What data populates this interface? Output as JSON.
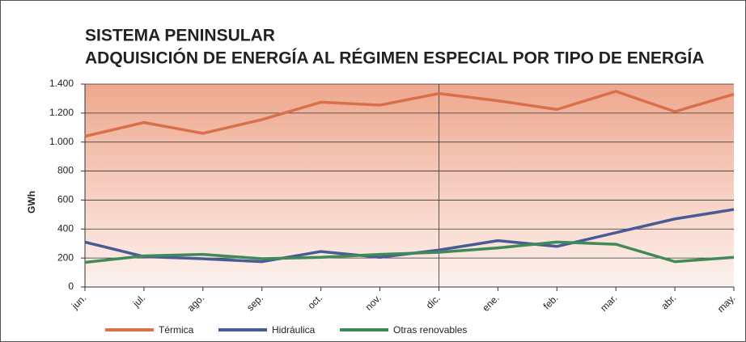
{
  "chart_data": {
    "type": "line",
    "title": [
      "SISTEMA PENINSULAR",
      "ADQUISICIÓN DE ENERGÍA AL RÉGIMEN ESPECIAL POR TIPO DE ENERGÍA"
    ],
    "y_label": "GWh",
    "categories": [
      "jun.",
      "jul.",
      "ago.",
      "sep.",
      "oct.",
      "nov.",
      "dic.",
      "ene.",
      "feb.",
      "mar.",
      "abr.",
      "may."
    ],
    "series": [
      {
        "name": "Térmica",
        "color": "#d9704a",
        "values": [
          1040,
          1135,
          1060,
          1155,
          1275,
          1255,
          1335,
          1285,
          1225,
          1350,
          1210,
          1330
        ]
      },
      {
        "name": "Hidráulica",
        "color": "#4a5a94",
        "values": [
          310,
          210,
          195,
          175,
          245,
          205,
          255,
          320,
          280,
          375,
          470,
          535
        ]
      },
      {
        "name": "Otras renovables",
        "color": "#3f8a57",
        "values": [
          170,
          215,
          225,
          195,
          205,
          225,
          240,
          270,
          310,
          295,
          175,
          205
        ]
      }
    ],
    "ylim": [
      0,
      1400
    ],
    "yticks": [
      0,
      200,
      400,
      600,
      800,
      {
        "value": 1000,
        "label": "1.000"
      },
      {
        "value": 1200,
        "label": "1.200"
      },
      {
        "value": 1400,
        "label": "1.400"
      }
    ],
    "grid": true,
    "legend": "bottom"
  }
}
